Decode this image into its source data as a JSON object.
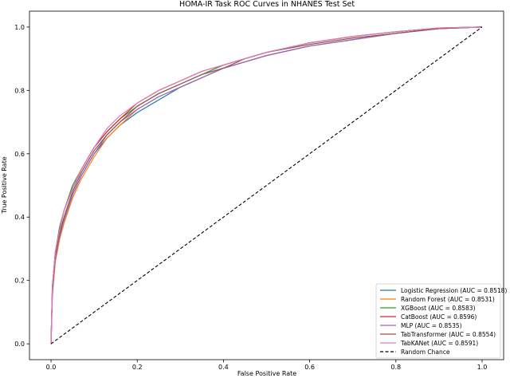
{
  "chart_data": {
    "type": "line",
    "title": "HOMA-IR Task ROC Curves in NHANES Test Set",
    "xlabel": "False Positive Rate",
    "ylabel": "True Positive Rate",
    "xlim": [
      -0.05,
      1.05
    ],
    "ylim": [
      -0.05,
      1.05
    ],
    "xticks": [
      0.0,
      0.2,
      0.4,
      0.6,
      0.8,
      1.0
    ],
    "yticks": [
      0.0,
      0.2,
      0.4,
      0.6,
      0.8,
      1.0
    ],
    "xtick_labels": [
      "0.0",
      "0.2",
      "0.4",
      "0.6",
      "0.8",
      "1.0"
    ],
    "ytick_labels": [
      "0.0",
      "0.2",
      "0.4",
      "0.6",
      "0.8",
      "1.0"
    ],
    "grid": false,
    "legend_position": "lower-right",
    "series": [
      {
        "name": "Logistic Regression (AUC = 0.8518)",
        "color": "#1f77b4",
        "x": [
          0,
          0.003,
          0.01,
          0.02,
          0.03,
          0.05,
          0.07,
          0.1,
          0.13,
          0.16,
          0.2,
          0.25,
          0.3,
          0.35,
          0.4,
          0.45,
          0.5,
          0.6,
          0.7,
          0.8,
          0.9,
          1.0
        ],
        "y": [
          0,
          0.16,
          0.27,
          0.34,
          0.39,
          0.47,
          0.53,
          0.6,
          0.65,
          0.69,
          0.73,
          0.77,
          0.81,
          0.84,
          0.87,
          0.89,
          0.91,
          0.94,
          0.96,
          0.98,
          0.995,
          1.0
        ]
      },
      {
        "name": "Random Forest (AUC = 0.8531)",
        "color": "#ff7f0e",
        "x": [
          0,
          0.003,
          0.01,
          0.02,
          0.03,
          0.05,
          0.07,
          0.1,
          0.13,
          0.16,
          0.2,
          0.25,
          0.3,
          0.35,
          0.4,
          0.45,
          0.5,
          0.6,
          0.7,
          0.8,
          0.9,
          1.0
        ],
        "y": [
          0,
          0.15,
          0.26,
          0.33,
          0.38,
          0.46,
          0.52,
          0.59,
          0.65,
          0.69,
          0.74,
          0.78,
          0.81,
          0.84,
          0.87,
          0.89,
          0.91,
          0.94,
          0.96,
          0.98,
          0.995,
          1.0
        ]
      },
      {
        "name": "XGBoost (AUC = 0.8583)",
        "color": "#2ca02c",
        "x": [
          0,
          0.003,
          0.01,
          0.02,
          0.03,
          0.05,
          0.07,
          0.1,
          0.13,
          0.16,
          0.2,
          0.25,
          0.3,
          0.35,
          0.4,
          0.45,
          0.5,
          0.6,
          0.7,
          0.8,
          0.9,
          1.0
        ],
        "y": [
          0,
          0.18,
          0.29,
          0.37,
          0.42,
          0.5,
          0.55,
          0.62,
          0.67,
          0.71,
          0.75,
          0.79,
          0.82,
          0.85,
          0.88,
          0.9,
          0.92,
          0.95,
          0.97,
          0.985,
          0.997,
          1.0
        ]
      },
      {
        "name": "CatBoost (AUC = 0.8596)",
        "color": "#d62728",
        "x": [
          0,
          0.003,
          0.01,
          0.02,
          0.03,
          0.05,
          0.07,
          0.1,
          0.13,
          0.16,
          0.2,
          0.25,
          0.3,
          0.35,
          0.4,
          0.45,
          0.5,
          0.6,
          0.7,
          0.8,
          0.9,
          1.0
        ],
        "y": [
          0,
          0.18,
          0.29,
          0.36,
          0.42,
          0.49,
          0.55,
          0.62,
          0.67,
          0.71,
          0.76,
          0.8,
          0.83,
          0.86,
          0.88,
          0.9,
          0.92,
          0.95,
          0.97,
          0.985,
          0.997,
          1.0
        ]
      },
      {
        "name": "MLP (AUC = 0.8535)",
        "color": "#9467bd",
        "x": [
          0,
          0.003,
          0.01,
          0.02,
          0.03,
          0.05,
          0.07,
          0.1,
          0.13,
          0.16,
          0.2,
          0.25,
          0.3,
          0.35,
          0.4,
          0.45,
          0.5,
          0.6,
          0.7,
          0.8,
          0.9,
          1.0
        ],
        "y": [
          0,
          0.16,
          0.27,
          0.34,
          0.39,
          0.47,
          0.53,
          0.6,
          0.66,
          0.7,
          0.74,
          0.78,
          0.81,
          0.84,
          0.87,
          0.89,
          0.91,
          0.94,
          0.96,
          0.98,
          0.995,
          1.0
        ]
      },
      {
        "name": "TabTransformer (AUC = 0.8554)",
        "color": "#8c564b",
        "x": [
          0,
          0.003,
          0.01,
          0.02,
          0.03,
          0.05,
          0.07,
          0.1,
          0.13,
          0.16,
          0.2,
          0.25,
          0.3,
          0.35,
          0.4,
          0.45,
          0.5,
          0.6,
          0.7,
          0.8,
          0.9,
          1.0
        ],
        "y": [
          0,
          0.17,
          0.28,
          0.35,
          0.4,
          0.48,
          0.54,
          0.61,
          0.66,
          0.7,
          0.75,
          0.79,
          0.82,
          0.85,
          0.87,
          0.9,
          0.92,
          0.945,
          0.965,
          0.98,
          0.995,
          1.0
        ]
      },
      {
        "name": "TabKANet (AUC = 0.8591)",
        "color": "#e377c2",
        "x": [
          0,
          0.003,
          0.01,
          0.02,
          0.03,
          0.05,
          0.07,
          0.1,
          0.13,
          0.16,
          0.2,
          0.25,
          0.3,
          0.35,
          0.4,
          0.45,
          0.5,
          0.6,
          0.7,
          0.8,
          0.9,
          1.0
        ],
        "y": [
          0,
          0.18,
          0.29,
          0.36,
          0.42,
          0.49,
          0.55,
          0.62,
          0.68,
          0.72,
          0.76,
          0.8,
          0.83,
          0.86,
          0.88,
          0.9,
          0.92,
          0.95,
          0.97,
          0.985,
          0.997,
          1.0
        ]
      },
      {
        "name": "Random Chance",
        "color": "#000000",
        "dashed": true,
        "x": [
          0,
          1
        ],
        "y": [
          0,
          1
        ]
      }
    ]
  }
}
